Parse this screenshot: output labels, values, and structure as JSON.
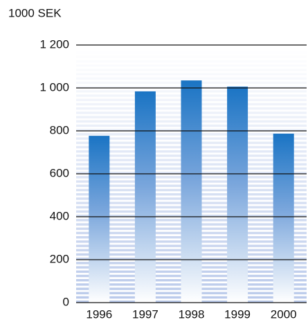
{
  "chart_data": {
    "type": "bar",
    "y_label": "1000 SEK",
    "categories": [
      "1996",
      "1997",
      "1998",
      "1999",
      "2000"
    ],
    "values": [
      777,
      984,
      1035,
      1006,
      787
    ],
    "color": "#1a74c4",
    "ylim": [
      0,
      1200
    ],
    "yticks": [
      0,
      200,
      400,
      600,
      800,
      {
        "value": 1000,
        "label": "1 000"
      },
      {
        "value": 1200,
        "label": "1 200"
      }
    ],
    "grid": true
  }
}
